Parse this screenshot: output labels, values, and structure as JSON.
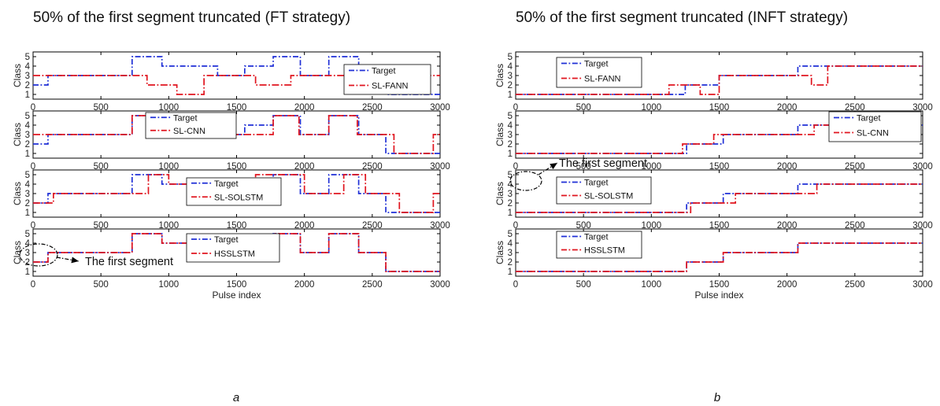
{
  "columns": [
    {
      "title": "50% of the first segment truncated (FT strategy)",
      "sublabel": "a"
    },
    {
      "title": "50% of the first segment truncated (INFT strategy)",
      "sublabel": "b"
    }
  ],
  "colors": {
    "target": "#1f2fd6",
    "model": "#e0141e"
  },
  "annotation_text": "The first segment",
  "chart_data": [
    {
      "type": "line",
      "column": 0,
      "row": 0,
      "ylabel": "Class",
      "xlabel": "",
      "xlim": [
        0,
        3000
      ],
      "ylim": [
        0.5,
        5.5
      ],
      "xticks": [
        0,
        500,
        1000,
        1500,
        2000,
        2500,
        3000
      ],
      "yticks": [
        1,
        2,
        3,
        4,
        5
      ],
      "legend_position": "right",
      "series": [
        {
          "name": "Target",
          "role": "target",
          "breaks": [
            0,
            110,
            730,
            950,
            1360,
            1560,
            1770,
            1970,
            2180,
            2400,
            2600,
            3000
          ],
          "values": [
            2,
            3,
            5,
            4,
            3,
            4,
            5,
            3,
            5,
            3,
            1
          ]
        },
        {
          "name": "SL-FANN",
          "role": "model",
          "breaks": [
            0,
            840,
            1060,
            1260,
            1640,
            1900,
            2700,
            3000
          ],
          "values": [
            3,
            2,
            1,
            3,
            2,
            3,
            3
          ]
        }
      ]
    },
    {
      "type": "line",
      "column": 0,
      "row": 1,
      "ylabel": "Class",
      "xlabel": "",
      "xlim": [
        0,
        3000
      ],
      "ylim": [
        0.5,
        5.5
      ],
      "xticks": [
        0,
        500,
        1000,
        1500,
        2000,
        2500,
        3000
      ],
      "yticks": [
        1,
        2,
        3,
        4,
        5
      ],
      "legend_position": "center",
      "series": [
        {
          "name": "Target",
          "role": "target",
          "breaks": [
            0,
            110,
            730,
            950,
            1360,
            1560,
            1770,
            1970,
            2180,
            2400,
            2600,
            3000
          ],
          "values": [
            2,
            3,
            5,
            4,
            3,
            4,
            5,
            3,
            5,
            3,
            1
          ]
        },
        {
          "name": "SL-CNN",
          "role": "model",
          "breaks": [
            0,
            730,
            1000,
            1270,
            1640,
            1770,
            1960,
            2180,
            2390,
            2660,
            2950,
            3000
          ],
          "values": [
            3,
            5,
            4,
            3,
            3,
            5,
            3,
            5,
            3,
            1,
            3
          ]
        }
      ]
    },
    {
      "type": "line",
      "column": 0,
      "row": 2,
      "ylabel": "Class",
      "xlabel": "",
      "xlim": [
        0,
        3000
      ],
      "ylim": [
        0.5,
        5.5
      ],
      "xticks": [
        0,
        500,
        1000,
        1500,
        2000,
        2500,
        3000
      ],
      "yticks": [
        1,
        2,
        3,
        4,
        5
      ],
      "legend_position": "right",
      "series": [
        {
          "name": "Target",
          "role": "target",
          "breaks": [
            0,
            110,
            730,
            950,
            1360,
            1560,
            1770,
            1970,
            2180,
            2400,
            2600,
            3000
          ],
          "values": [
            2,
            3,
            5,
            4,
            3,
            4,
            5,
            3,
            5,
            3,
            1
          ]
        },
        {
          "name": "SL-SOLSTM",
          "role": "model",
          "breaks": [
            0,
            150,
            850,
            1000,
            1380,
            1640,
            2000,
            2290,
            2450,
            2700,
            2950,
            3000
          ],
          "values": [
            2,
            3,
            5,
            4,
            3,
            5,
            3,
            5,
            3,
            1,
            3
          ]
        }
      ]
    },
    {
      "type": "line",
      "column": 0,
      "row": 3,
      "ylabel": "Class",
      "xlabel": "Pulse index",
      "xlim": [
        0,
        3000
      ],
      "ylim": [
        0.5,
        5.5
      ],
      "xticks": [
        0,
        500,
        1000,
        1500,
        2000,
        2500,
        3000
      ],
      "yticks": [
        1,
        2,
        3,
        4,
        5
      ],
      "legend_position": "center-right",
      "series": [
        {
          "name": "Target",
          "role": "target",
          "breaks": [
            0,
            110,
            730,
            950,
            1360,
            1560,
            1770,
            1970,
            2180,
            2400,
            2600,
            3000
          ],
          "values": [
            2,
            3,
            5,
            4,
            3,
            4,
            5,
            3,
            5,
            3,
            1
          ]
        },
        {
          "name": "HSSLSTM",
          "role": "model",
          "breaks": [
            0,
            110,
            730,
            950,
            1360,
            1560,
            1770,
            1970,
            2180,
            2400,
            2600,
            3000
          ],
          "values": [
            2,
            3,
            5,
            4,
            3,
            4,
            5,
            3,
            5,
            3,
            1
          ]
        }
      ]
    },
    {
      "type": "line",
      "column": 1,
      "row": 0,
      "ylabel": "Class",
      "xlabel": "",
      "xlim": [
        0,
        3000
      ],
      "ylim": [
        0.5,
        5.5
      ],
      "xticks": [
        0,
        500,
        1000,
        1500,
        2000,
        2500,
        3000
      ],
      "yticks": [
        1,
        2,
        3,
        4,
        5
      ],
      "legend_position": "top-left",
      "series": [
        {
          "name": "Target",
          "role": "target",
          "breaks": [
            0,
            1250,
            1500,
            2080,
            3000
          ],
          "values": [
            1,
            2,
            3,
            4
          ]
        },
        {
          "name": "SL-FANN",
          "role": "model",
          "breaks": [
            0,
            1130,
            1360,
            1500,
            2180,
            2300,
            3000
          ],
          "values": [
            1,
            2,
            1,
            3,
            2,
            4
          ]
        }
      ]
    },
    {
      "type": "line",
      "column": 1,
      "row": 1,
      "ylabel": "Class",
      "xlabel": "",
      "xlim": [
        0,
        3000
      ],
      "ylim": [
        0.5,
        5.5
      ],
      "xticks": [
        0,
        500,
        1000,
        1500,
        2000,
        2500,
        3000
      ],
      "yticks": [
        1,
        2,
        3,
        4,
        5
      ],
      "legend_position": "right",
      "series": [
        {
          "name": "Target",
          "role": "target",
          "breaks": [
            0,
            1260,
            1530,
            2080,
            3000
          ],
          "values": [
            1,
            2,
            3,
            4
          ]
        },
        {
          "name": "SL-CNN",
          "role": "model",
          "breaks": [
            0,
            1230,
            1460,
            2200,
            3000
          ],
          "values": [
            1,
            2,
            3,
            4
          ]
        }
      ]
    },
    {
      "type": "line",
      "column": 1,
      "row": 2,
      "ylabel": "Class",
      "xlabel": "",
      "xlim": [
        0,
        3000
      ],
      "ylim": [
        0.5,
        5.5
      ],
      "xticks": [
        0,
        500,
        1000,
        1500,
        2000,
        2500,
        3000
      ],
      "yticks": [
        1,
        2,
        3,
        4,
        5
      ],
      "legend_position": "top-left",
      "series": [
        {
          "name": "Target",
          "role": "target",
          "breaks": [
            0,
            1260,
            1530,
            2080,
            3000
          ],
          "values": [
            1,
            2,
            3,
            4
          ]
        },
        {
          "name": "SL-SOLSTM",
          "role": "model",
          "breaks": [
            0,
            1290,
            1620,
            2220,
            3000
          ],
          "values": [
            1,
            2,
            3,
            4
          ]
        }
      ]
    },
    {
      "type": "line",
      "column": 1,
      "row": 3,
      "ylabel": "Class",
      "xlabel": "Pulse index",
      "xlim": [
        0,
        3000
      ],
      "ylim": [
        0.5,
        5.5
      ],
      "xticks": [
        0,
        500,
        1000,
        1500,
        2000,
        2500,
        3000
      ],
      "yticks": [
        1,
        2,
        3,
        4,
        5
      ],
      "legend_position": "top-left",
      "series": [
        {
          "name": "Target",
          "role": "target",
          "breaks": [
            0,
            1260,
            1530,
            2080,
            3000
          ],
          "values": [
            1,
            2,
            3,
            4
          ]
        },
        {
          "name": "HSSLSTM",
          "role": "model",
          "breaks": [
            0,
            1260,
            1530,
            2080,
            3000
          ],
          "values": [
            1,
            2,
            3,
            4
          ]
        }
      ]
    }
  ]
}
